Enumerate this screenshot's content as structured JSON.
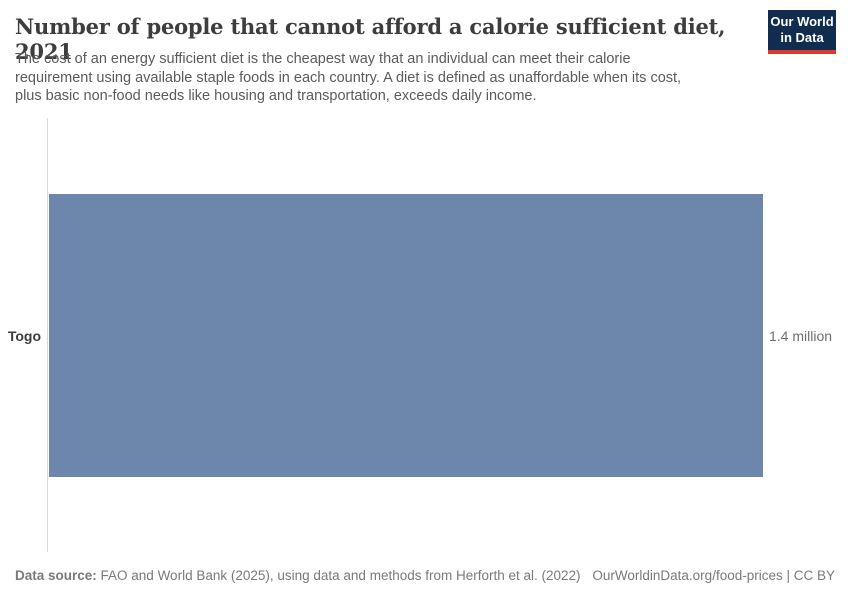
{
  "header": {
    "title": "Number of people that cannot afford a calorie sufficient diet, 2021",
    "subtitle": "The cost of an energy sufficient diet is the cheapest way that an individual can meet their calorie requirement using available staple foods in each country. A diet is defined as unaffordable when its cost, plus basic non-food needs like housing and transportation, exceeds daily income."
  },
  "logo": {
    "line1": "Our World",
    "line2": "in Data",
    "bg_color": "#102d4f",
    "accent_color": "#dc3a2c"
  },
  "chart_data": {
    "type": "bar",
    "orientation": "horizontal",
    "title": "Number of people that cannot afford a calorie sufficient diet, 2021",
    "categories": [
      "Togo"
    ],
    "values": [
      1.4
    ],
    "unit": "million",
    "value_labels": [
      "1.4 million"
    ],
    "bar_color": "#6d86ac",
    "xlim": [
      0,
      1.4
    ],
    "grid": false,
    "legend": "none"
  },
  "footer": {
    "source_label": "Data source:",
    "source_text": " FAO and World Bank (2025), using data and methods from Herforth et al. (2022)",
    "right_text": "OurWorldinData.org/food-prices | CC BY"
  }
}
